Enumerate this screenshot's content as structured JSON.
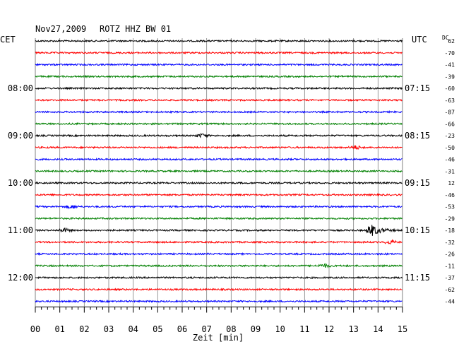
{
  "header": {
    "date": "Nov27,2009",
    "station": "ROTZ HHZ BW 01",
    "left_tz": "CET",
    "right_tz": "UTC",
    "offset_header": "DC"
  },
  "chart_data": {
    "type": "line",
    "title": "Nov27,2009   ROTZ HHZ BW 01",
    "xlabel": "Zeit [min]",
    "xlim": [
      0,
      15
    ],
    "x_ticks": [
      "00",
      "01",
      "02",
      "03",
      "04",
      "05",
      "06",
      "07",
      "08",
      "09",
      "10",
      "11",
      "12",
      "13",
      "14",
      "15"
    ],
    "trace_colors": [
      "#000000",
      "#ff0000",
      "#0000ff",
      "#008000"
    ],
    "left_hour_labels": [
      "08:00",
      "09:00",
      "10:00",
      "11:00",
      "12:00"
    ],
    "right_hour_labels": [
      "07:15",
      "08:15",
      "09:15",
      "10:15",
      "11:15"
    ],
    "dc_offsets": [
      "62",
      "-70",
      "-41",
      "-39",
      "-60",
      "-63",
      "-87",
      "-66",
      "-23",
      "-50",
      "-46",
      "-31",
      "12",
      "-46",
      "-53",
      "-29",
      "-18",
      "-32",
      "-26",
      "-11",
      "-37",
      "-62",
      "-44"
    ],
    "events": [
      {
        "trace": 16,
        "minute": 13.7,
        "amplitude": "large"
      },
      {
        "trace": 17,
        "minute": 14.5,
        "amplitude": "small"
      },
      {
        "trace": 19,
        "minute": 11.8,
        "amplitude": "small"
      },
      {
        "trace": 9,
        "minute": 13.1,
        "amplitude": "small"
      },
      {
        "trace": 16,
        "minute": 1.2,
        "amplitude": "small"
      },
      {
        "trace": 14,
        "minute": 1.5,
        "amplitude": "small"
      },
      {
        "trace": 8,
        "minute": 6.8,
        "amplitude": "small"
      }
    ]
  }
}
